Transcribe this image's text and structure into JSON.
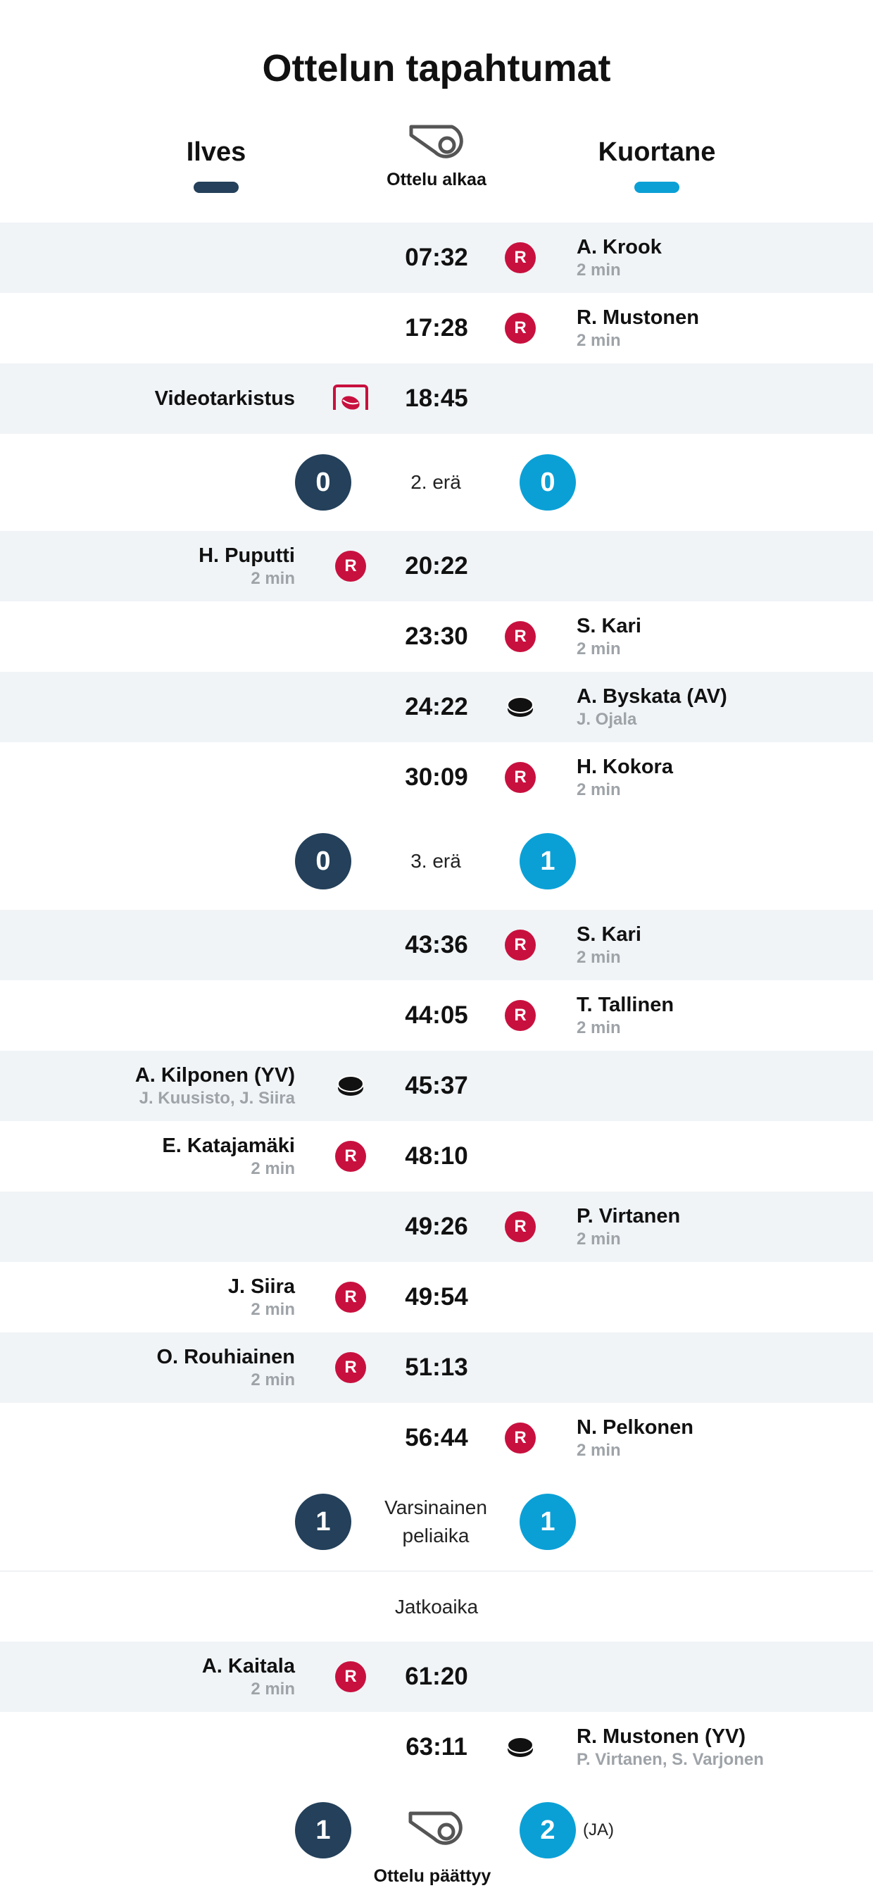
{
  "title": "Ottelun tapahtumat",
  "colors": {
    "home": "#24405a",
    "away": "#0aa0d6",
    "penalty": "#c8103e",
    "shaded_row": "#f0f4f7",
    "secondary_text": "#9ea3a8"
  },
  "teams": {
    "home": "Ilves",
    "away": "Kuortane"
  },
  "start": {
    "icon": "whistle-icon",
    "label": "Ottelu alkaa"
  },
  "penalty_badge_letter": "R",
  "timeline": [
    {
      "kind": "event",
      "side": "away",
      "type": "penalty",
      "time": "07:32",
      "name": "A. Krook",
      "detail": "2 min"
    },
    {
      "kind": "event",
      "side": "away",
      "type": "penalty",
      "time": "17:28",
      "name": "R. Mustonen",
      "detail": "2 min"
    },
    {
      "kind": "event",
      "side": "home",
      "type": "video",
      "time": "18:45",
      "name": "Videotarkistus",
      "detail": ""
    },
    {
      "kind": "period",
      "home": "0",
      "away": "0",
      "label": "2. erä"
    },
    {
      "kind": "event",
      "side": "home",
      "type": "penalty",
      "time": "20:22",
      "name": "H. Puputti",
      "detail": "2 min"
    },
    {
      "kind": "event",
      "side": "away",
      "type": "penalty",
      "time": "23:30",
      "name": "S. Kari",
      "detail": "2 min"
    },
    {
      "kind": "event",
      "side": "away",
      "type": "goal",
      "time": "24:22",
      "name": "A. Byskata (AV)",
      "detail": "J. Ojala"
    },
    {
      "kind": "event",
      "side": "away",
      "type": "penalty",
      "time": "30:09",
      "name": "H. Kokora",
      "detail": "2 min"
    },
    {
      "kind": "period",
      "home": "0",
      "away": "1",
      "label": "3. erä"
    },
    {
      "kind": "event",
      "side": "away",
      "type": "penalty",
      "time": "43:36",
      "name": "S. Kari",
      "detail": "2 min"
    },
    {
      "kind": "event",
      "side": "away",
      "type": "penalty",
      "time": "44:05",
      "name": "T. Tallinen",
      "detail": "2 min"
    },
    {
      "kind": "event",
      "side": "home",
      "type": "goal",
      "time": "45:37",
      "name": "A. Kilponen (YV)",
      "detail": "J. Kuusisto, J. Siira"
    },
    {
      "kind": "event",
      "side": "home",
      "type": "penalty",
      "time": "48:10",
      "name": "E. Katajamäki",
      "detail": "2 min"
    },
    {
      "kind": "event",
      "side": "away",
      "type": "penalty",
      "time": "49:26",
      "name": "P. Virtanen",
      "detail": "2 min"
    },
    {
      "kind": "event",
      "side": "home",
      "type": "penalty",
      "time": "49:54",
      "name": "J. Siira",
      "detail": "2 min"
    },
    {
      "kind": "event",
      "side": "home",
      "type": "penalty",
      "time": "51:13",
      "name": "O. Rouhiainen",
      "detail": "2 min"
    },
    {
      "kind": "event",
      "side": "away",
      "type": "penalty",
      "time": "56:44",
      "name": "N. Pelkonen",
      "detail": "2 min"
    },
    {
      "kind": "period",
      "home": "1",
      "away": "1",
      "label": "Varsinainen peliaika"
    },
    {
      "kind": "header",
      "label": "Jatkoaika"
    },
    {
      "kind": "event",
      "side": "home",
      "type": "penalty",
      "time": "61:20",
      "name": "A. Kaitala",
      "detail": "2 min"
    },
    {
      "kind": "event",
      "side": "away",
      "type": "goal",
      "time": "63:11",
      "name": "R. Mustonen (YV)",
      "detail": "P. Virtanen, S. Varjonen"
    }
  ],
  "final": {
    "home": "1",
    "away": "2",
    "note": "(JA)",
    "icon": "whistle-icon",
    "label": "Ottelu päättyy"
  }
}
